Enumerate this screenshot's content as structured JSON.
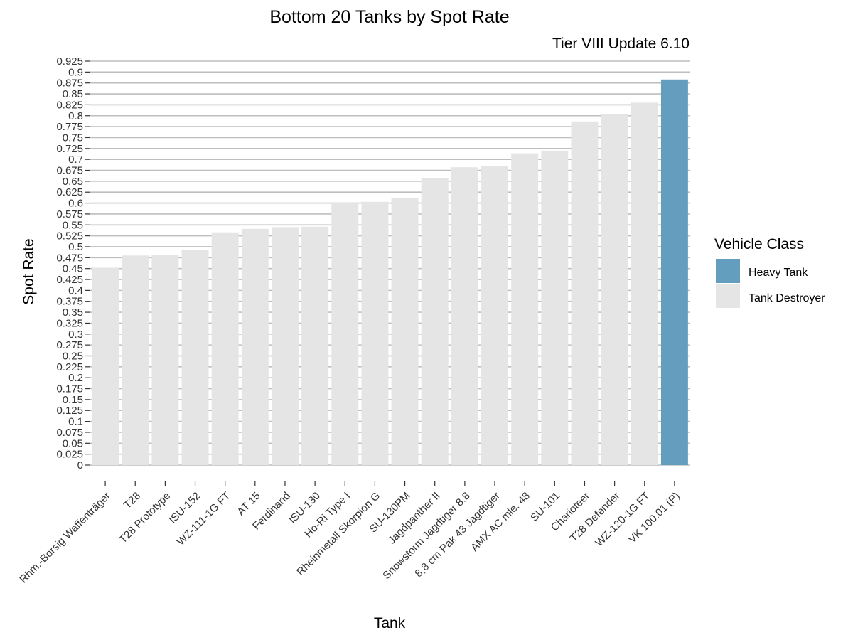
{
  "chart_data": {
    "type": "bar",
    "title": "Bottom 20 Tanks by Spot Rate",
    "subtitle": "Tier VIII Update 6.10",
    "xlabel": "Tank",
    "ylabel": "Spot Rate",
    "ylim": [
      0,
      0.925
    ],
    "y_ticks": [
      "0",
      "0.025",
      "0.05",
      "0.075",
      "0.1",
      "0.125",
      "0.15",
      "0.175",
      "0.2",
      "0.225",
      "0.25",
      "0.275",
      "0.3",
      "0.325",
      "0.35",
      "0.375",
      "0.4",
      "0.425",
      "0.45",
      "0.475",
      "0.5",
      "0.525",
      "0.55",
      "0.575",
      "0.6",
      "0.625",
      "0.65",
      "0.675",
      "0.7",
      "0.725",
      "0.75",
      "0.775",
      "0.8",
      "0.825",
      "0.85",
      "0.875",
      "0.9",
      "0.925"
    ],
    "grid": true,
    "legend": {
      "title": "Vehicle Class",
      "placement": "right",
      "entries": [
        {
          "label": "Heavy Tank",
          "color": "#639EBE"
        },
        {
          "label": "Tank Destroyer",
          "color": "#E5E5E5"
        }
      ]
    },
    "categories": [
      "Rhm.-Borsig Waffenträger",
      "T28",
      "T28 Prototype",
      "ISU-152",
      "WZ-111-1G FT",
      "AT 15",
      "Ferdinand",
      "ISU-130",
      "Ho-Ri Type I",
      "Rheinmetall Skorpion G",
      "SU-130PM",
      "Jagdpanther II",
      "Snowstorm Jagdtiger 8.8",
      "8,8 cm Pak 43 Jagdtiger",
      "AMX AC mle. 48",
      "SU-101",
      "Charioteer",
      "T28 Defender",
      "WZ-120-1G FT",
      "VK 100.01 (P)"
    ],
    "values": [
      0.452,
      0.48,
      0.482,
      0.492,
      0.533,
      0.541,
      0.545,
      0.546,
      0.601,
      0.603,
      0.612,
      0.657,
      0.682,
      0.684,
      0.714,
      0.72,
      0.787,
      0.804,
      0.83,
      0.883
    ],
    "classes": [
      "Tank Destroyer",
      "Tank Destroyer",
      "Tank Destroyer",
      "Tank Destroyer",
      "Tank Destroyer",
      "Tank Destroyer",
      "Tank Destroyer",
      "Tank Destroyer",
      "Tank Destroyer",
      "Tank Destroyer",
      "Tank Destroyer",
      "Tank Destroyer",
      "Tank Destroyer",
      "Tank Destroyer",
      "Tank Destroyer",
      "Tank Destroyer",
      "Tank Destroyer",
      "Tank Destroyer",
      "Tank Destroyer",
      "Heavy Tank"
    ]
  }
}
